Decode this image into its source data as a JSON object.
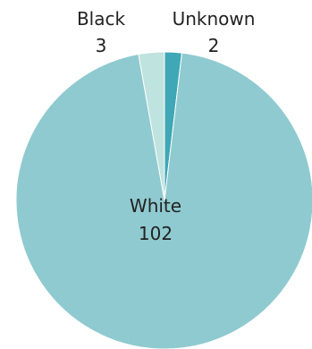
{
  "chart_data": {
    "type": "pie",
    "title": "",
    "slices": [
      {
        "label": "Unknown",
        "value": 2,
        "color": "#3FA7B5"
      },
      {
        "label": "White",
        "value": 102,
        "color": "#8FCAD0"
      },
      {
        "label": "Black",
        "value": 3,
        "color": "#BFE3DE"
      }
    ],
    "legend": "none",
    "labels": [
      {
        "name": "Black",
        "value": "3"
      },
      {
        "name": "Unknown",
        "value": "2"
      },
      {
        "name": "White",
        "value": "102"
      }
    ]
  }
}
